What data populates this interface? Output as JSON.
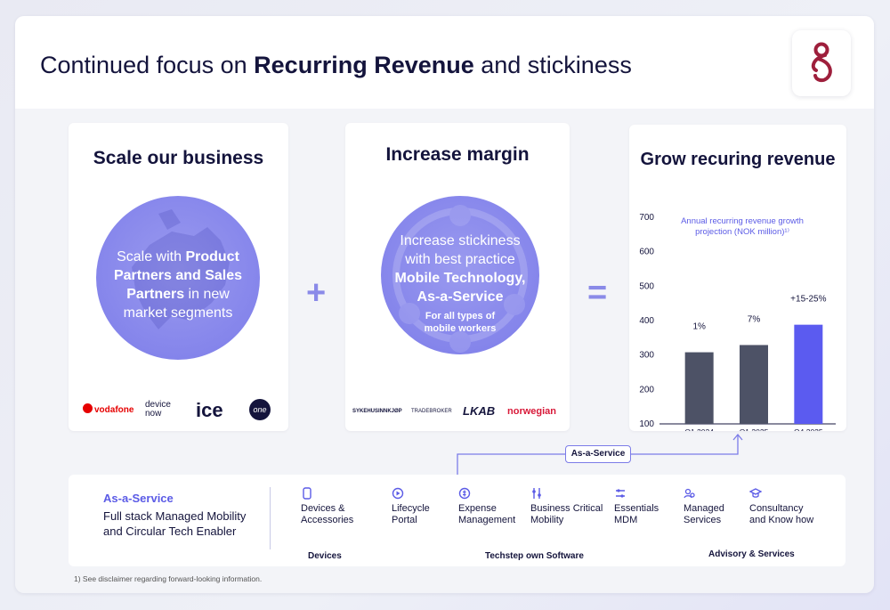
{
  "slide": {
    "title_prefix": "Continued focus on ",
    "title_bold": "Recurring Revenue",
    "title_suffix": " and stickiness"
  },
  "scale": {
    "title": "Scale our business",
    "text_1": "Scale with ",
    "text_bold": "Product Partners and Sales Partners",
    "text_2": " in new market segments",
    "partners": [
      "vodafone",
      "device now",
      "ice",
      "one"
    ]
  },
  "margin": {
    "title": "Increase margin",
    "text_1": "Increase stickiness with best practice",
    "text_bold": "Mobile Technology, As-a-Service",
    "text_small": "For all types of mobile workers",
    "customers": [
      "SYKEHUSINNKJØP",
      "TRADEBROKER",
      "LKAB",
      "norwegian"
    ]
  },
  "operators": {
    "plus": "+",
    "equals": "="
  },
  "grow": {
    "title": "Grow recuring revenue",
    "chart_label": "Annual recurring revenue growth projection (NOK million)¹⁾"
  },
  "chart_data": {
    "type": "bar",
    "title": "Annual recurring revenue growth projection (NOK million)¹⁾",
    "categories": [
      "Q1 2024",
      "Q1 2025",
      "Q4 2025"
    ],
    "values": [
      308,
      329,
      388
    ],
    "annotations": [
      "1%",
      "7%",
      "+15-25%"
    ],
    "yticks": [
      100,
      200,
      300,
      400,
      500,
      600,
      700
    ],
    "ylim": [
      100,
      700
    ],
    "colors": [
      "#4d5266",
      "#4d5266",
      "#5b5bf0"
    ],
    "grid": false
  },
  "badge": {
    "label": "As-a-Service"
  },
  "bottom": {
    "title": "As-a-Service",
    "desc": "Full stack Managed Mobility and Circular Tech Enabler",
    "services": [
      {
        "label": "Devices &\nAccessories"
      },
      {
        "label": "Lifecycle\nPortal"
      },
      {
        "label": "Expense\nManagement"
      },
      {
        "label": "Business Critical\nMobility"
      },
      {
        "label": "Essentials\nMDM"
      },
      {
        "label": "Managed\nServices"
      },
      {
        "label": "Consultancy\nand Know how"
      }
    ],
    "categories": [
      "Devices",
      "Techstep own Software",
      "Advisory & Services"
    ]
  },
  "footnote": "1) See disclaimer regarding forward-looking information.",
  "colors": {
    "accent": "#5b5be6",
    "navy": "#14143c",
    "circle": "#8585eb",
    "logo": "#9e1f3c"
  }
}
